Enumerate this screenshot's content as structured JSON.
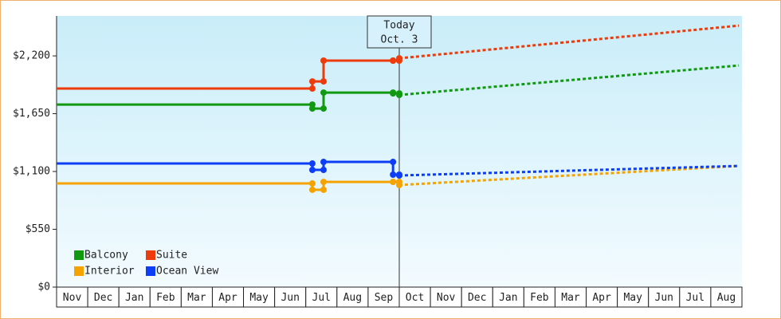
{
  "chart_data": {
    "type": "step-line",
    "categories": [
      "Nov",
      "Dec",
      "Jan",
      "Feb",
      "Mar",
      "Apr",
      "May",
      "Jun",
      "Jul",
      "Aug",
      "Sep",
      "Oct",
      "Nov",
      "Dec",
      "Jan",
      "Feb",
      "Mar",
      "Apr",
      "May",
      "Jun",
      "Jul",
      "Aug"
    ],
    "xlim": [
      0,
      22
    ],
    "ylim": [
      0,
      2580
    ],
    "yticks": [
      {
        "value": 0,
        "label": "$0"
      },
      {
        "value": 550,
        "label": "$550"
      },
      {
        "value": 1100,
        "label": "$1,100"
      },
      {
        "value": 1650,
        "label": "$1,650"
      },
      {
        "value": 2200,
        "label": "$2,200"
      }
    ],
    "today": {
      "label": [
        "Today",
        "Oct. 3"
      ],
      "x": 11.0
    },
    "series": [
      {
        "name": "Balcony",
        "color": "#119911",
        "x": [
          0,
          8.21,
          8.57,
          10.8,
          11.0,
          21.9
        ],
        "values": [
          1737,
          1699,
          1851,
          1843,
          1828,
          2109
        ]
      },
      {
        "name": "Suite",
        "color": "#ee3b0b",
        "x": [
          0,
          8.21,
          8.57,
          10.8,
          11.0,
          21.9
        ],
        "values": [
          1889,
          1957,
          2155,
          2155,
          2177,
          2488
        ]
      },
      {
        "name": "Interior",
        "color": "#f5a300",
        "x": [
          0,
          8.21,
          8.57,
          10.8,
          11.0,
          21.9
        ],
        "values": [
          986,
          926,
          1001,
          1001,
          971,
          1153
        ]
      },
      {
        "name": "Ocean View",
        "color": "#0d3ef5",
        "x": [
          0,
          8.21,
          8.57,
          10.8,
          11.0,
          21.9
        ],
        "values": [
          1176,
          1115,
          1191,
          1070,
          1062,
          1153
        ]
      }
    ]
  }
}
